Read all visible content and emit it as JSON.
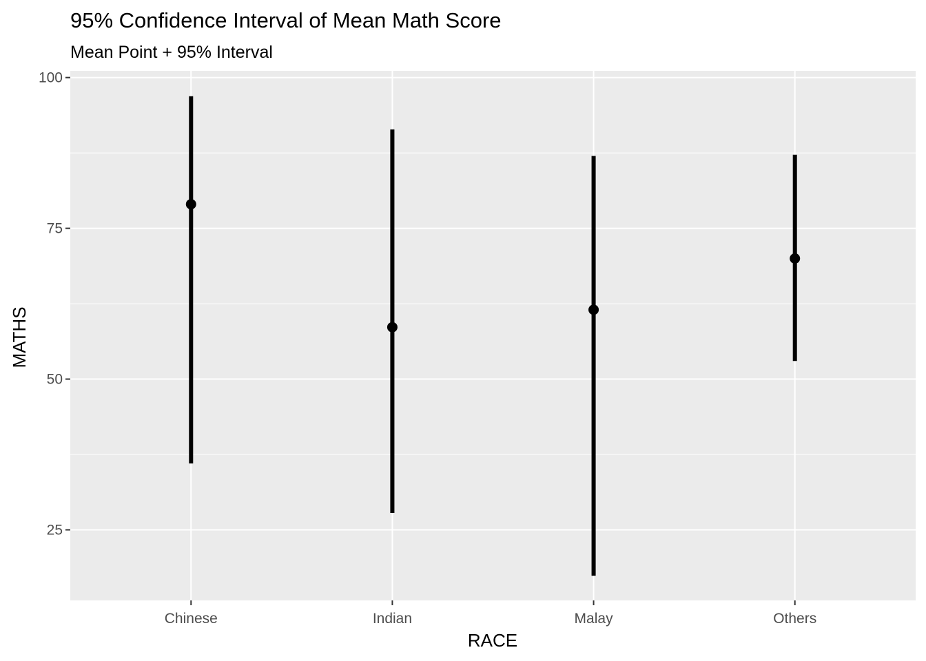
{
  "chart_data": {
    "type": "errorbar",
    "title": "95% Confidence Interval of Mean Math Score",
    "subtitle": "Mean Point + 95% Interval",
    "xlabel": "RACE",
    "ylabel": "MATHS",
    "categories": [
      "Chinese",
      "Indian",
      "Malay",
      "Others"
    ],
    "mean": [
      79.0,
      58.6,
      61.5,
      70.0
    ],
    "lower": [
      36.0,
      27.8,
      17.4,
      53.0
    ],
    "upper": [
      96.9,
      91.4,
      87.0,
      87.2
    ],
    "ylim": [
      13.3,
      101.1
    ],
    "yticks": [
      25,
      50,
      75,
      100
    ],
    "grid": true,
    "legend": "none",
    "colors": {
      "panel_background": "#ebebeb",
      "grid_major": "#ffffff",
      "grid_minor": "#ffffff",
      "marks": "#000000",
      "tick_label": "#4d4d4d",
      "tick_mark": "#333333"
    }
  }
}
